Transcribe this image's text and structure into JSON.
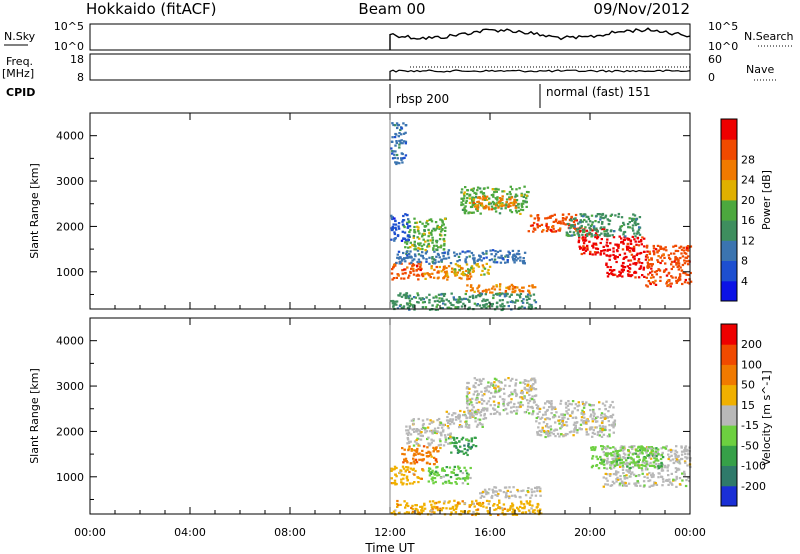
{
  "header": {
    "title": "Hokkaido (fitACF)",
    "beam": "Beam 00",
    "date": "09/Nov/2012"
  },
  "nsky_panel": {
    "left_label": "N.Sky",
    "left_ticks": [
      "10^5",
      "10^0"
    ],
    "right_ticks": [
      "10^5",
      "10^0"
    ],
    "right_label": "N.Search",
    "right_style": "dotted"
  },
  "freq_panel": {
    "left_label_line1": "Freq.",
    "left_label_line2": "[MHz]",
    "left_ticks": [
      "18",
      "8"
    ],
    "right_ticks": [
      "60",
      "0"
    ],
    "right_label": "Nave",
    "right_style": "dotted"
  },
  "cpid": {
    "label": "CPID",
    "modes": [
      {
        "text": "rbsp 200",
        "start": "12:00"
      },
      {
        "text": "normal (fast) 151",
        "start": "18:00"
      }
    ]
  },
  "time_axis": {
    "label": "Time UT",
    "ticks": [
      "00:00",
      "04:00",
      "08:00",
      "12:00",
      "16:00",
      "20:00",
      "00:00"
    ],
    "range_hours": [
      0,
      24
    ]
  },
  "chart_data": [
    {
      "type": "heatmap",
      "name": "power",
      "ylabel": "Slant Range [km]",
      "yticks": [
        1000,
        2000,
        3000,
        4000
      ],
      "ylim": [
        180,
        4500
      ],
      "xlim": [
        0,
        24
      ],
      "colorbar": {
        "label": "Power [dB]",
        "ticks": [
          "4",
          "8",
          "12",
          "16",
          "20",
          "24",
          "28"
        ],
        "colors": [
          "#0b12e6",
          "#1d4fd0",
          "#3b74b0",
          "#3e8e5e",
          "#4ca83e",
          "#e0b000",
          "#f07a00",
          "#f04a00",
          "#ee0000"
        ]
      },
      "bands": [
        {
          "t0": 12.0,
          "t1": 13.3,
          "r0": 850,
          "r1": 1250,
          "c": 7
        },
        {
          "t0": 13.3,
          "t1": 15.2,
          "r0": 850,
          "r1": 1150,
          "c": 6
        },
        {
          "t0": 12.2,
          "t1": 17.5,
          "r0": 1200,
          "r1": 1500,
          "c": 2
        },
        {
          "t0": 14.5,
          "t1": 16.0,
          "r0": 950,
          "r1": 1200,
          "c": 5
        },
        {
          "t0": 15.0,
          "t1": 17.8,
          "r0": 550,
          "r1": 750,
          "c": 6
        },
        {
          "t0": 12.0,
          "t1": 17.8,
          "r0": 180,
          "r1": 550,
          "c": 3
        },
        {
          "t0": 12.5,
          "t1": 14.2,
          "r0": 1500,
          "r1": 2200,
          "c": 4
        },
        {
          "t0": 14.8,
          "t1": 17.5,
          "r0": 2300,
          "r1": 2900,
          "c": 4
        },
        {
          "t0": 15.3,
          "t1": 17.0,
          "r0": 2400,
          "r1": 2700,
          "c": 6
        },
        {
          "t0": 17.5,
          "t1": 19.5,
          "r0": 1900,
          "r1": 2300,
          "c": 7
        },
        {
          "t0": 19.5,
          "t1": 20.6,
          "r0": 1400,
          "r1": 2000,
          "c": 8
        },
        {
          "t0": 20.6,
          "t1": 22.2,
          "r0": 900,
          "r1": 1800,
          "c": 8
        },
        {
          "t0": 22.2,
          "t1": 24.0,
          "r0": 700,
          "r1": 1600,
          "c": 7
        },
        {
          "t0": 12.0,
          "t1": 12.8,
          "r0": 1700,
          "r1": 2300,
          "c": 1
        },
        {
          "t0": 12.0,
          "t1": 12.6,
          "r0": 3400,
          "r1": 4300,
          "c": 2
        },
        {
          "t0": 19.0,
          "t1": 22.0,
          "r0": 1800,
          "r1": 2300,
          "c": 3
        }
      ]
    },
    {
      "type": "heatmap",
      "name": "velocity",
      "ylabel": "Slant Range [km]",
      "yticks": [
        1000,
        2000,
        3000,
        4000
      ],
      "ylim": [
        180,
        4500
      ],
      "xlim": [
        0,
        24
      ],
      "colorbar": {
        "label": "Velocity [m s^-1]",
        "ticks": [
          "200",
          "100",
          "50",
          "15",
          "-15",
          "-50",
          "-100",
          "-200"
        ],
        "colors": [
          "#1a2fd6",
          "#2f7a6a",
          "#36a048",
          "#6dd040",
          "#b8b8b8",
          "#f0b000",
          "#f07a00",
          "#f04a00",
          "#ee0000"
        ]
      },
      "bands": [
        {
          "t0": 12.0,
          "t1": 13.3,
          "r0": 850,
          "r1": 1250,
          "c": 5
        },
        {
          "t0": 12.4,
          "t1": 14.0,
          "r0": 1300,
          "r1": 1700,
          "c": 6
        },
        {
          "t0": 13.5,
          "t1": 15.2,
          "r0": 850,
          "r1": 1250,
          "c": 3
        },
        {
          "t0": 14.3,
          "t1": 15.4,
          "r0": 1500,
          "r1": 1900,
          "c": 2
        },
        {
          "t0": 15.5,
          "t1": 18.0,
          "r0": 550,
          "r1": 800,
          "c": 4
        },
        {
          "t0": 12.0,
          "t1": 18.0,
          "r0": 180,
          "r1": 500,
          "c": 5
        },
        {
          "t0": 12.6,
          "t1": 14.4,
          "r0": 1700,
          "r1": 2300,
          "c": 4
        },
        {
          "t0": 15.0,
          "t1": 17.8,
          "r0": 2400,
          "r1": 3200,
          "c": 4
        },
        {
          "t0": 17.8,
          "t1": 21.0,
          "r0": 1900,
          "r1": 2700,
          "c": 4
        },
        {
          "t0": 20.5,
          "t1": 24.0,
          "r0": 800,
          "r1": 1700,
          "c": 4
        },
        {
          "t0": 20.0,
          "t1": 23.0,
          "r0": 1200,
          "r1": 1700,
          "c": 3
        },
        {
          "t0": 14.2,
          "t1": 15.8,
          "r0": 2100,
          "r1": 2500,
          "c": 4
        }
      ]
    }
  ]
}
